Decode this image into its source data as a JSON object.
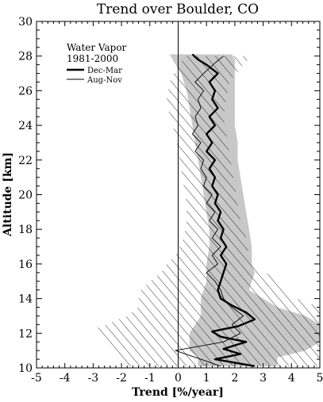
{
  "chart_data": {
    "type": "line",
    "title": "Trend over Boulder, CO",
    "xlabel": "Trend [%/year]",
    "ylabel": "Altitude [km]",
    "xlim": [
      -5,
      5
    ],
    "ylim": [
      10,
      30
    ],
    "x_ticks": [
      "-5",
      "-4",
      "-3",
      "-2",
      "-1",
      "0",
      "1",
      "2",
      "3",
      "4",
      "5"
    ],
    "y_ticks": [
      "10",
      "12",
      "14",
      "16",
      "18",
      "20",
      "22",
      "24",
      "26",
      "28",
      "30"
    ],
    "legend": {
      "title_line1": "Water Vapor",
      "title_line2": "1981-2000",
      "placement": "top-left"
    },
    "colors": {
      "band_fill": "#c8c8c8",
      "line": "#000000",
      "hatch": "#000000"
    },
    "series": [
      {
        "name": "Dec-Mar",
        "style": "thick",
        "uncertainty": "gray-shaded",
        "points": [
          [
            2.7,
            10.1
          ],
          [
            1.3,
            10.5
          ],
          [
            2.2,
            10.8
          ],
          [
            1.6,
            11.1
          ],
          [
            2.4,
            11.5
          ],
          [
            1.5,
            11.8
          ],
          [
            1.2,
            12.1
          ],
          [
            2.1,
            12.4
          ],
          [
            2.7,
            12.8
          ],
          [
            2.4,
            13.2
          ],
          [
            1.9,
            13.6
          ],
          [
            1.5,
            14.0
          ],
          [
            1.4,
            14.5
          ],
          [
            1.5,
            15.0
          ],
          [
            1.6,
            15.5
          ],
          [
            1.7,
            16.0
          ],
          [
            1.5,
            16.5
          ],
          [
            1.7,
            17.0
          ],
          [
            1.5,
            17.5
          ],
          [
            1.6,
            18.0
          ],
          [
            1.4,
            18.5
          ],
          [
            1.5,
            19.0
          ],
          [
            1.3,
            19.5
          ],
          [
            1.4,
            20.0
          ],
          [
            1.2,
            20.5
          ],
          [
            1.3,
            21.0
          ],
          [
            1.1,
            21.5
          ],
          [
            1.3,
            22.0
          ],
          [
            1.0,
            22.5
          ],
          [
            1.2,
            23.0
          ],
          [
            1.0,
            23.5
          ],
          [
            1.3,
            24.0
          ],
          [
            1.1,
            24.5
          ],
          [
            1.4,
            25.0
          ],
          [
            1.2,
            25.5
          ],
          [
            1.3,
            26.0
          ],
          [
            1.1,
            26.5
          ],
          [
            1.4,
            27.0
          ],
          [
            1.0,
            27.5
          ],
          [
            0.7,
            27.8
          ],
          [
            0.5,
            28.1
          ]
        ],
        "band": [
          [
            [
              0.7,
              3.5
            ],
            10.1
          ],
          [
            [
              0.7,
              3.5
            ],
            10.6
          ],
          [
            [
              0.4,
              4.5
            ],
            11.0
          ],
          [
            [
              0.4,
              5.0
            ],
            11.5
          ],
          [
            [
              0.4,
              5.0
            ],
            12.0
          ],
          [
            [
              0.6,
              5.0
            ],
            12.5
          ],
          [
            [
              0.8,
              4.5
            ],
            13.0
          ],
          [
            [
              0.8,
              3.5
            ],
            13.5
          ],
          [
            [
              0.8,
              3.0
            ],
            14.0
          ],
          [
            [
              0.9,
              2.5
            ],
            14.5
          ],
          [
            [
              1.0,
              2.6
            ],
            15.0
          ],
          [
            [
              1.0,
              2.7
            ],
            15.5
          ],
          [
            [
              1.0,
              2.6
            ],
            16.0
          ],
          [
            [
              1.1,
              2.6
            ],
            17.0
          ],
          [
            [
              1.1,
              2.5
            ],
            18.0
          ],
          [
            [
              1.0,
              2.4
            ],
            19.0
          ],
          [
            [
              0.9,
              2.3
            ],
            20.0
          ],
          [
            [
              0.8,
              2.2
            ],
            21.0
          ],
          [
            [
              0.7,
              2.1
            ],
            22.0
          ],
          [
            [
              0.6,
              2.1
            ],
            23.0
          ],
          [
            [
              0.5,
              2.0
            ],
            24.0
          ],
          [
            [
              0.4,
              2.0
            ],
            25.0
          ],
          [
            [
              0.3,
              2.0
            ],
            26.0
          ],
          [
            [
              0.1,
              2.0
            ],
            27.0
          ],
          [
            [
              -0.2,
              2.0
            ],
            27.8
          ],
          [
            [
              -0.3,
              1.9
            ],
            28.1
          ]
        ]
      },
      {
        "name": "Aug-Nov",
        "style": "thin",
        "uncertainty": "hatched",
        "points": [
          [
            1.5,
            10.1
          ],
          [
            0.8,
            10.5
          ],
          [
            -0.1,
            11.0
          ],
          [
            1.6,
            11.5
          ],
          [
            2.2,
            12.0
          ],
          [
            1.9,
            12.5
          ],
          [
            2.3,
            13.0
          ],
          [
            1.9,
            13.5
          ],
          [
            1.6,
            14.0
          ],
          [
            1.5,
            14.5
          ],
          [
            1.3,
            15.0
          ],
          [
            1.0,
            15.5
          ],
          [
            1.4,
            16.0
          ],
          [
            1.2,
            16.5
          ],
          [
            1.5,
            17.0
          ],
          [
            1.2,
            17.5
          ],
          [
            1.4,
            18.0
          ],
          [
            1.1,
            18.5
          ],
          [
            1.3,
            19.0
          ],
          [
            1.0,
            19.5
          ],
          [
            1.2,
            20.0
          ],
          [
            0.9,
            20.5
          ],
          [
            1.0,
            21.0
          ],
          [
            0.8,
            21.5
          ],
          [
            0.9,
            22.0
          ],
          [
            0.6,
            22.5
          ],
          [
            0.8,
            23.0
          ],
          [
            0.5,
            23.5
          ],
          [
            0.7,
            24.0
          ],
          [
            0.6,
            24.5
          ],
          [
            0.8,
            25.0
          ],
          [
            0.7,
            25.5
          ],
          [
            0.9,
            26.0
          ],
          [
            0.6,
            26.5
          ],
          [
            0.9,
            27.0
          ],
          [
            1.3,
            27.6
          ],
          [
            1.6,
            28.0
          ]
        ],
        "band": [
          [
            [
              -1.7,
              5.0
            ],
            10.1
          ],
          [
            [
              -2.4,
              5.0
            ],
            11.0
          ],
          [
            [
              -3.0,
              5.0
            ],
            12.2
          ],
          [
            [
              -1.8,
              5.0
            ],
            13.0
          ],
          [
            [
              -1.4,
              5.0
            ],
            13.5
          ],
          [
            [
              -1.4,
              4.2
            ],
            14.0
          ],
          [
            [
              -1.3,
              3.9
            ],
            14.5
          ],
          [
            [
              -1.0,
              3.5
            ],
            15.0
          ],
          [
            [
              -0.6,
              3.1
            ],
            15.5
          ],
          [
            [
              -0.4,
              2.8
            ],
            16.0
          ],
          [
            [
              -0.1,
              2.5
            ],
            16.5
          ],
          [
            [
              0.2,
              2.4
            ],
            17.5
          ],
          [
            [
              0.3,
              2.2
            ],
            18.5
          ],
          [
            [
              0.3,
              2.1
            ],
            19.5
          ],
          [
            [
              0.2,
              2.0
            ],
            20.5
          ],
          [
            [
              0.1,
              1.9
            ],
            21.5
          ],
          [
            [
              0.0,
              1.8
            ],
            22.5
          ],
          [
            [
              -0.1,
              1.7
            ],
            23.5
          ],
          [
            [
              -0.3,
              1.6
            ],
            24.5
          ],
          [
            [
              -0.4,
              1.7
            ],
            25.5
          ],
          [
            [
              -0.3,
              1.8
            ],
            26.5
          ],
          [
            [
              0.0,
              2.3
            ],
            27.5
          ],
          [
            [
              0.3,
              2.6
            ],
            28.0
          ]
        ]
      }
    ]
  }
}
